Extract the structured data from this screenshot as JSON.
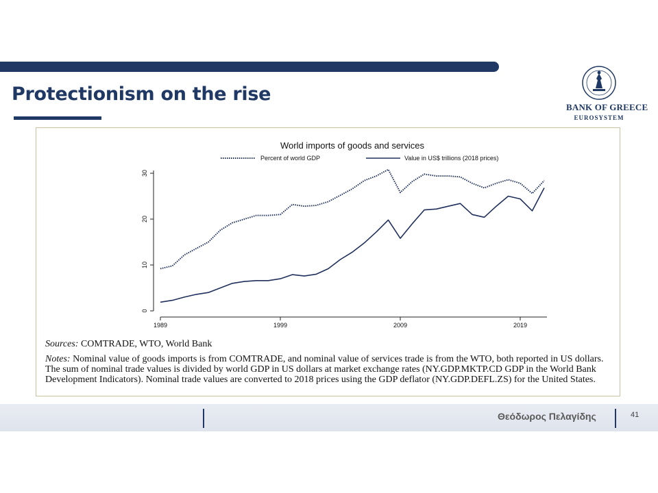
{
  "slide": {
    "title": "Protectionism on the rise",
    "logo": {
      "name": "Bank of Greece",
      "subtitle": "EUROSYSTEM"
    },
    "sources_label": "Sources:",
    "sources_text": " COMTRADE, WTO, World Bank",
    "notes_label": "Notes:",
    "notes_text": " Nominal value of goods imports is from COMTRADE, and nominal value of services trade is from the WTO, both reported in US dollars. The sum of nominal trade values is divided by world GDP in US dollars at market exchange rates (NY.GDP.MKTP.CD GDP in the World Bank Development Indicators). Nominal trade values are converted to 2018 prices using the GDP deflator (NY.GDP.DEFL.ZS) for the United States.",
    "footer_author": "Θεόδωρος Πελαγίδης",
    "page_number": "41"
  },
  "colors": {
    "brand": "#1f3864",
    "series": "#1f2f5c"
  },
  "chart_data": {
    "type": "line",
    "title": "World imports of goods and services",
    "xlabel": "",
    "ylabel": "",
    "xlim": [
      1989,
      2021
    ],
    "ylim": [
      0,
      30
    ],
    "x_ticks": [
      1989,
      1999,
      2009,
      2019
    ],
    "y_ticks": [
      0,
      10,
      20,
      30
    ],
    "grid": false,
    "legend_position": "top",
    "x": [
      1989,
      1990,
      1991,
      1992,
      1993,
      1994,
      1995,
      1996,
      1997,
      1998,
      1999,
      2000,
      2001,
      2002,
      2003,
      2004,
      2005,
      2006,
      2007,
      2008,
      2009,
      2010,
      2011,
      2012,
      2013,
      2014,
      2015,
      2016,
      2017,
      2018,
      2019,
      2020,
      2021
    ],
    "series": [
      {
        "name": "Percent of world GDP",
        "style": "dotted",
        "values": [
          9.2,
          9.8,
          12.2,
          13.6,
          15.0,
          17.6,
          19.2,
          20.0,
          20.8,
          20.8,
          21.0,
          23.2,
          22.8,
          23.0,
          23.8,
          25.2,
          26.6,
          28.4,
          29.4,
          30.8,
          25.8,
          28.2,
          29.8,
          29.4,
          29.4,
          29.2,
          27.8,
          26.8,
          27.8,
          28.6,
          27.8,
          25.6,
          28.4
        ]
      },
      {
        "name": "Value in US$ trillions (2018 prices)",
        "style": "solid",
        "values": [
          1.9,
          2.3,
          3.0,
          3.6,
          4.0,
          5.0,
          6.0,
          6.4,
          6.6,
          6.6,
          7.0,
          7.9,
          7.6,
          8.0,
          9.2,
          11.2,
          12.8,
          14.8,
          17.2,
          19.8,
          15.8,
          19.0,
          22.0,
          22.2,
          22.8,
          23.4,
          21.0,
          20.4,
          22.8,
          25.0,
          24.4,
          21.8,
          26.8
        ]
      }
    ]
  }
}
